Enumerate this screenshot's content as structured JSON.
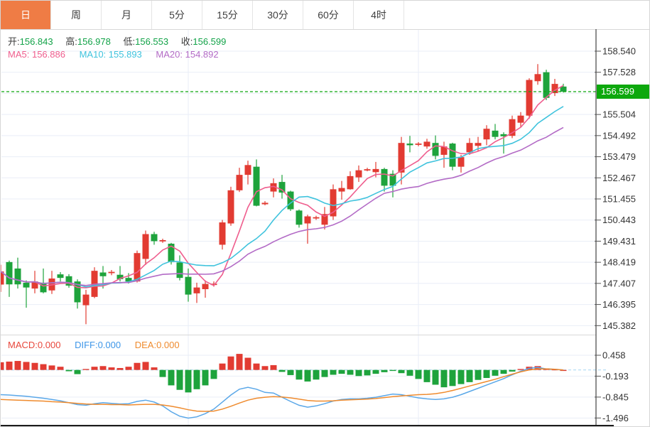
{
  "tabs": [
    {
      "label": "日",
      "active": true
    },
    {
      "label": "周",
      "active": false
    },
    {
      "label": "月",
      "active": false
    },
    {
      "label": "5分",
      "active": false
    },
    {
      "label": "15分",
      "active": false
    },
    {
      "label": "30分",
      "active": false
    },
    {
      "label": "60分",
      "active": false
    },
    {
      "label": "4时",
      "active": false
    }
  ],
  "ohlc": {
    "items": [
      {
        "label": "开:",
        "value": "156.843"
      },
      {
        "label": "高:",
        "value": "156.978"
      },
      {
        "label": "低:",
        "value": "156.553"
      },
      {
        "label": "收:",
        "value": "156.599"
      }
    ]
  },
  "ma_legend": {
    "items": [
      {
        "label": "MA5:",
        "value": "156.886"
      },
      {
        "label": "MA10:",
        "value": "155.893"
      },
      {
        "label": "MA20:",
        "value": "154.892"
      }
    ]
  },
  "macd_legend": {
    "items": [
      {
        "label": "MACD:",
        "value": "0.000"
      },
      {
        "label": "DIFF:",
        "value": "0.000"
      },
      {
        "label": "DEA:",
        "value": "0.000"
      }
    ]
  },
  "price_axis": {
    "ticks": [
      "158.540",
      "157.528",
      "155.504",
      "154.492",
      "153.479",
      "152.467",
      "151.455",
      "150.443",
      "149.431",
      "148.419",
      "147.407",
      "146.395",
      "145.382"
    ],
    "current_price": "156.599"
  },
  "macd_axis": {
    "ticks": [
      "0.458",
      "-0.193",
      "-0.845",
      "-1.496"
    ]
  },
  "colors": {
    "up": "#e23b32",
    "down": "#1ea33c",
    "ma5": "#ef5e8e",
    "ma10": "#3fc3dd",
    "ma20": "#b36bc6",
    "diff_line": "#5aa7e8",
    "dea_line": "#ef8b2e",
    "price_tag_bg": "#0da80d",
    "price_dashed_line": "#0da80d",
    "macd_zero_line": "#aed9f2",
    "grid": "#e9eef7",
    "axis": "#444444",
    "tab_active_bg": "#ef7c45",
    "value_green": "#12a348"
  },
  "chart_data": {
    "type": "candlestick",
    "title": "",
    "xlabel": "",
    "ylabel": "",
    "grid": true,
    "legend_position": "top-left",
    "price_ticks": [
      158.54,
      157.528,
      155.504,
      154.492,
      153.479,
      152.467,
      151.455,
      150.443,
      149.431,
      148.419,
      147.407,
      146.395,
      145.382
    ],
    "current_price": 156.599,
    "last_bar": {
      "open": 156.843,
      "high": 156.978,
      "low": 156.553,
      "close": 156.599
    },
    "ma_periods": [
      5,
      10,
      20
    ],
    "ma_values_last": {
      "ma5": 156.886,
      "ma10": 155.893,
      "ma20": 154.892
    },
    "candles": [
      [
        147.35,
        148.3,
        147.0,
        147.98
      ],
      [
        148.43,
        148.5,
        146.76,
        147.36
      ],
      [
        148.12,
        148.64,
        147.16,
        147.36
      ],
      [
        147.44,
        147.55,
        146.24,
        147.21
      ],
      [
        147.16,
        148.01,
        146.93,
        147.5
      ],
      [
        147.44,
        148.12,
        146.93,
        146.98
      ],
      [
        147.07,
        148.01,
        146.9,
        147.64
      ],
      [
        147.84,
        147.95,
        147.5,
        147.67
      ],
      [
        147.75,
        147.85,
        147.2,
        147.3
      ],
      [
        147.5,
        147.6,
        146.2,
        146.5
      ],
      [
        146.36,
        147.1,
        145.45,
        146.87
      ],
      [
        146.76,
        148.18,
        146.7,
        148.01
      ],
      [
        147.93,
        148.24,
        147.16,
        147.75
      ],
      [
        147.9,
        148.05,
        147.8,
        147.96
      ],
      [
        147.82,
        148.24,
        147.5,
        147.61
      ],
      [
        147.67,
        147.9,
        147.4,
        147.5
      ],
      [
        147.5,
        148.98,
        147.45,
        148.86
      ],
      [
        148.58,
        149.94,
        148.29,
        149.77
      ],
      [
        149.77,
        149.88,
        149.26,
        149.43
      ],
      [
        149.43,
        149.55,
        149.35,
        149.48
      ],
      [
        149.31,
        149.35,
        148.31,
        148.43
      ],
      [
        148.41,
        148.75,
        147.55,
        147.67
      ],
      [
        147.72,
        148.12,
        146.53,
        146.87
      ],
      [
        146.93,
        147.44,
        146.47,
        147.21
      ],
      [
        147.13,
        147.55,
        146.72,
        147.38
      ],
      [
        147.33,
        147.5,
        147.25,
        147.39
      ],
      [
        149.26,
        150.45,
        149.03,
        150.33
      ],
      [
        150.28,
        152.04,
        150.17,
        151.87
      ],
      [
        151.87,
        152.95,
        151.79,
        152.61
      ],
      [
        152.61,
        153.29,
        152.15,
        153.08
      ],
      [
        153.0,
        153.35,
        151.1,
        151.13
      ],
      [
        151.2,
        151.35,
        151.15,
        151.27
      ],
      [
        151.81,
        152.44,
        151.53,
        152.21
      ],
      [
        152.27,
        152.61,
        151.47,
        151.76
      ],
      [
        151.81,
        151.85,
        150.88,
        150.96
      ],
      [
        150.9,
        150.95,
        150.08,
        150.22
      ],
      [
        150.28,
        150.7,
        149.31,
        150.62
      ],
      [
        150.52,
        150.65,
        150.45,
        150.58
      ],
      [
        150.22,
        151.07,
        149.99,
        150.73
      ],
      [
        150.62,
        152.15,
        150.45,
        151.92
      ],
      [
        151.81,
        152.32,
        151.42,
        151.98
      ],
      [
        151.92,
        152.78,
        151.9,
        152.55
      ],
      [
        152.49,
        153.06,
        152.27,
        152.83
      ],
      [
        152.82,
        152.95,
        152.78,
        152.88
      ],
      [
        152.74,
        153.23,
        152.49,
        152.89
      ],
      [
        152.89,
        152.95,
        151.81,
        152.09
      ],
      [
        152.66,
        152.83,
        151.53,
        152.09
      ],
      [
        152.72,
        154.43,
        152.15,
        154.14
      ],
      [
        154.11,
        154.48,
        153.69,
        154.03
      ],
      [
        154.05,
        154.18,
        153.98,
        154.11
      ],
      [
        153.97,
        154.34,
        153.86,
        154.2
      ],
      [
        154.14,
        154.5,
        153.35,
        153.52
      ],
      [
        153.57,
        154.2,
        152.95,
        153.97
      ],
      [
        154.11,
        154.15,
        152.83,
        153.0
      ],
      [
        153.0,
        153.57,
        152.72,
        153.46
      ],
      [
        153.69,
        154.37,
        153.57,
        154.14
      ],
      [
        154.0,
        154.43,
        153.74,
        154.14
      ],
      [
        154.31,
        154.99,
        154.03,
        154.82
      ],
      [
        154.73,
        155.05,
        154.31,
        154.43
      ],
      [
        154.56,
        154.65,
        153.63,
        154.46
      ],
      [
        154.48,
        155.45,
        154.37,
        155.28
      ],
      [
        155.11,
        155.62,
        154.88,
        155.45
      ],
      [
        155.45,
        157.24,
        155.3,
        157.16
      ],
      [
        157.1,
        157.92,
        156.93,
        157.44
      ],
      [
        157.53,
        157.65,
        156.19,
        156.3
      ],
      [
        156.53,
        157.21,
        156.39,
        156.97
      ],
      [
        156.843,
        156.978,
        156.553,
        156.599
      ]
    ],
    "macd": {
      "ticks": [
        0.458,
        -0.193,
        -0.845,
        -1.496
      ],
      "last": {
        "macd": 0.0,
        "diff": 0.0,
        "dea": 0.0
      },
      "histogram": [
        0.24,
        0.26,
        0.28,
        0.25,
        0.22,
        0.18,
        0.14,
        0.1,
        -0.04,
        -0.13,
        0.03,
        0.1,
        0.12,
        0.08,
        0.06,
        0.1,
        0.22,
        0.25,
        0.08,
        -0.22,
        -0.48,
        -0.62,
        -0.7,
        -0.6,
        -0.48,
        -0.28,
        0.2,
        0.42,
        0.5,
        0.38,
        0.2,
        0.12,
        0.15,
        -0.06,
        -0.16,
        -0.3,
        -0.36,
        -0.3,
        -0.22,
        -0.15,
        -0.12,
        -0.15,
        -0.19,
        -0.17,
        -0.12,
        -0.07,
        -0.03,
        -0.1,
        -0.18,
        -0.28,
        -0.38,
        -0.46,
        -0.54,
        -0.5,
        -0.44,
        -0.38,
        -0.31,
        -0.25,
        -0.18,
        -0.12,
        -0.05,
        0.03,
        0.1,
        0.12,
        0.05,
        0.02,
        0.0
      ],
      "diff": [
        -0.77,
        -0.78,
        -0.8,
        -0.82,
        -0.85,
        -0.88,
        -0.92,
        -0.96,
        -1.02,
        -1.08,
        -1.1,
        -1.05,
        -1.02,
        -1.04,
        -1.06,
        -1.05,
        -0.98,
        -0.94,
        -1.0,
        -1.12,
        -1.3,
        -1.44,
        -1.5,
        -1.46,
        -1.36,
        -1.22,
        -1.0,
        -0.78,
        -0.6,
        -0.54,
        -0.6,
        -0.7,
        -0.72,
        -0.85,
        -0.98,
        -1.1,
        -1.16,
        -1.12,
        -1.05,
        -0.97,
        -0.92,
        -0.9,
        -0.9,
        -0.88,
        -0.85,
        -0.8,
        -0.75,
        -0.77,
        -0.82,
        -0.87,
        -0.9,
        -0.92,
        -0.9,
        -0.85,
        -0.77,
        -0.67,
        -0.57,
        -0.47,
        -0.37,
        -0.27,
        -0.15,
        -0.04,
        0.05,
        0.08,
        0.03,
        0.02,
        0.0
      ],
      "dea": [
        -0.92,
        -0.93,
        -0.94,
        -0.95,
        -0.96,
        -0.97,
        -0.99,
        -1.0,
        -1.02,
        -1.04,
        -1.06,
        -1.07,
        -1.07,
        -1.08,
        -1.08,
        -1.09,
        -1.08,
        -1.07,
        -1.07,
        -1.09,
        -1.13,
        -1.18,
        -1.24,
        -1.28,
        -1.29,
        -1.28,
        -1.22,
        -1.13,
        -1.03,
        -0.94,
        -0.88,
        -0.85,
        -0.83,
        -0.84,
        -0.87,
        -0.91,
        -0.95,
        -0.97,
        -0.97,
        -0.96,
        -0.94,
        -0.93,
        -0.92,
        -0.91,
        -0.89,
        -0.86,
        -0.83,
        -0.81,
        -0.79,
        -0.77,
        -0.76,
        -0.74,
        -0.7,
        -0.64,
        -0.57,
        -0.5,
        -0.43,
        -0.36,
        -0.29,
        -0.21,
        -0.13,
        -0.06,
        0.0,
        0.03,
        0.03,
        0.02,
        0.0
      ]
    }
  }
}
